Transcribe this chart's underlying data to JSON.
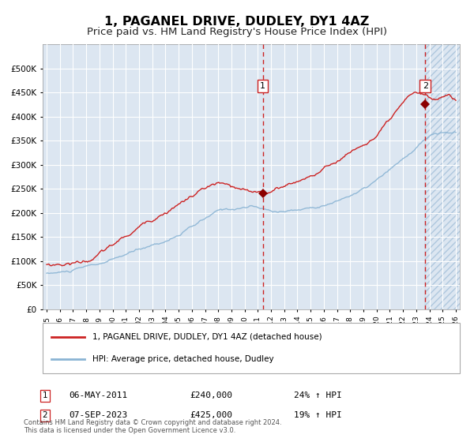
{
  "title": "1, PAGANEL DRIVE, DUDLEY, DY1 4AZ",
  "subtitle": "Price paid vs. HM Land Registry's House Price Index (HPI)",
  "title_fontsize": 11.5,
  "subtitle_fontsize": 9.5,
  "plot_bg_color": "#dce6f1",
  "grid_color": "#ffffff",
  "hpi_line_color": "#8ab4d4",
  "property_line_color": "#cc2222",
  "dashed_line_color": "#cc2222",
  "marker_color": "#8b0000",
  "sale1_date": "06-MAY-2011",
  "sale1_price": 240000,
  "sale1_pct": "24%",
  "sale2_date": "07-SEP-2023",
  "sale2_price": 425000,
  "sale2_pct": "19%",
  "legend_property": "1, PAGANEL DRIVE, DUDLEY, DY1 4AZ (detached house)",
  "legend_hpi": "HPI: Average price, detached house, Dudley",
  "footer": "Contains HM Land Registry data © Crown copyright and database right 2024.\nThis data is licensed under the Open Government Licence v3.0.",
  "ylim": [
    0,
    550000
  ],
  "yticks": [
    0,
    50000,
    100000,
    150000,
    200000,
    250000,
    300000,
    350000,
    400000,
    450000,
    500000
  ],
  "year_start": 1995,
  "year_end": 2026,
  "sale1_year_val": 2011.37,
  "sale2_year_val": 2023.69
}
